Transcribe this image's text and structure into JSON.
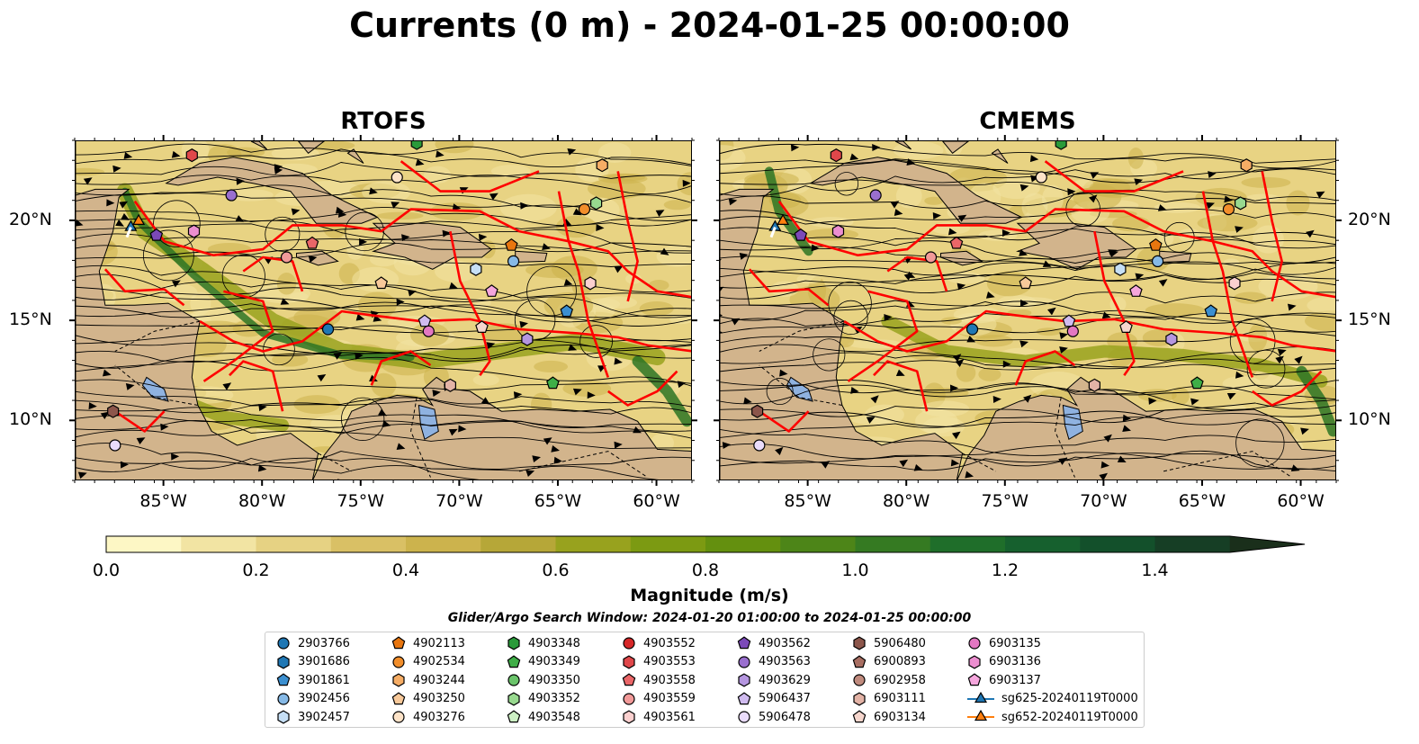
{
  "title": "Currents (0 m) - 2024-01-25 00:00:00",
  "panels": [
    {
      "title": "RTOFS"
    },
    {
      "title": "CMEMS"
    }
  ],
  "axes": {
    "lon_ticks": [
      "85°W",
      "80°W",
      "75°W",
      "70°W",
      "65°W",
      "60°W"
    ],
    "lat_ticks": [
      "20°N",
      "15°N",
      "10°N"
    ]
  },
  "colorbar": {
    "label": "Magnitude (m/s)",
    "ticks": [
      "0.0",
      "0.2",
      "0.4",
      "0.6",
      "0.8",
      "1.0",
      "1.2",
      "1.4"
    ],
    "range": [
      0,
      1.5
    ],
    "extend": "max",
    "colors": [
      "#fdf7c5",
      "#f2e4a3",
      "#e6d283",
      "#d9c065",
      "#ccb34d",
      "#b6a738",
      "#98a21e",
      "#7c9a12",
      "#64900f",
      "#4d8518",
      "#357a22",
      "#1f6e2a",
      "#16602e",
      "#13502b",
      "#163e25",
      "#1a2f1b"
    ]
  },
  "map_colors": {
    "land": "#d2b48c",
    "lake": "#8fb2e0",
    "ocean_low": "#e8d383",
    "ocean_mid": "#99a21e",
    "ocean_high": "#2d7424",
    "eez_lines": "#ff0000",
    "streamlines": "#000000"
  },
  "search_window": "Glider/Argo Search Window: 2024-01-20 01:00:00 to 2024-01-25 00:00:00",
  "legend": [
    {
      "label": "2903766",
      "marker": "circle",
      "color": "#1f77b4"
    },
    {
      "label": "3901686",
      "marker": "hexagon",
      "color": "#1f77b4"
    },
    {
      "label": "3901861",
      "marker": "pentagon",
      "color": "#3b8fd0"
    },
    {
      "label": "3902456",
      "marker": "circle",
      "color": "#86b9e6"
    },
    {
      "label": "3902457",
      "marker": "hexagon",
      "color": "#c6dff5"
    },
    {
      "label": "4902113",
      "marker": "pentagon",
      "color": "#e8760f"
    },
    {
      "label": "4902534",
      "marker": "circle",
      "color": "#f28e2b"
    },
    {
      "label": "4903244",
      "marker": "hexagon",
      "color": "#f6ad65"
    },
    {
      "label": "4903250",
      "marker": "pentagon",
      "color": "#f8c99a"
    },
    {
      "label": "4903276",
      "marker": "circle",
      "color": "#fde3c8"
    },
    {
      "label": "4903348",
      "marker": "hexagon",
      "color": "#2a9a3a"
    },
    {
      "label": "4903349",
      "marker": "pentagon",
      "color": "#3fae47"
    },
    {
      "label": "4903350",
      "marker": "circle",
      "color": "#6ac46a"
    },
    {
      "label": "4903352",
      "marker": "hexagon",
      "color": "#98d98f"
    },
    {
      "label": "4903548",
      "marker": "pentagon",
      "color": "#cdf0c4"
    },
    {
      "label": "4903552",
      "marker": "circle",
      "color": "#d62728"
    },
    {
      "label": "4903553",
      "marker": "hexagon",
      "color": "#e0474a"
    },
    {
      "label": "4903558",
      "marker": "pentagon",
      "color": "#ea6668"
    },
    {
      "label": "4903559",
      "marker": "circle",
      "color": "#f29a99"
    },
    {
      "label": "4903561",
      "marker": "hexagon",
      "color": "#fbd0cf"
    },
    {
      "label": "4903562",
      "marker": "pentagon",
      "color": "#7b49b8"
    },
    {
      "label": "4903563",
      "marker": "circle",
      "color": "#9a6fcf"
    },
    {
      "label": "4903629",
      "marker": "hexagon",
      "color": "#b596e0"
    },
    {
      "label": "5906437",
      "marker": "pentagon",
      "color": "#d0bbef"
    },
    {
      "label": "5906478",
      "marker": "circle",
      "color": "#eadcfb"
    },
    {
      "label": "5906480",
      "marker": "hexagon",
      "color": "#8c564b"
    },
    {
      "label": "6900893",
      "marker": "pentagon",
      "color": "#a86e62"
    },
    {
      "label": "6902958",
      "marker": "circle",
      "color": "#c08b7e"
    },
    {
      "label": "6903111",
      "marker": "hexagon",
      "color": "#e3b3a6"
    },
    {
      "label": "6903134",
      "marker": "pentagon",
      "color": "#f6d6cd"
    },
    {
      "label": "6903135",
      "marker": "circle",
      "color": "#e377c2"
    },
    {
      "label": "6903136",
      "marker": "hexagon",
      "color": "#ec8ed0"
    },
    {
      "label": "6903137",
      "marker": "pentagon",
      "color": "#f5a6dd"
    },
    {
      "label": "sg625-20240119T0000",
      "marker": "triangle-line",
      "color": "#1f77b4"
    },
    {
      "label": "sg652-20240119T0000",
      "marker": "triangle-line",
      "color": "#ff7f0e"
    }
  ],
  "observations": [
    {
      "id": "2903766",
      "lon": -76.7,
      "lat": 14.6
    },
    {
      "id": "3901861",
      "lon": -64.6,
      "lat": 15.5
    },
    {
      "id": "3902456",
      "lon": -67.3,
      "lat": 18.0
    },
    {
      "id": "3902457",
      "lon": -69.2,
      "lat": 17.6
    },
    {
      "id": "4902113",
      "lon": -67.4,
      "lat": 18.8
    },
    {
      "id": "4902534",
      "lon": -63.7,
      "lat": 20.6
    },
    {
      "id": "4903244",
      "lon": -62.8,
      "lat": 22.8
    },
    {
      "id": "4903250",
      "lon": -74.0,
      "lat": 16.9
    },
    {
      "id": "4903276",
      "lon": -73.2,
      "lat": 22.2
    },
    {
      "id": "4903348",
      "lon": -72.2,
      "lat": 23.9
    },
    {
      "id": "4903349",
      "lon": -65.3,
      "lat": 11.9
    },
    {
      "id": "4903352",
      "lon": -63.1,
      "lat": 20.9
    },
    {
      "id": "4903553",
      "lon": -83.6,
      "lat": 23.3
    },
    {
      "id": "4903558",
      "lon": -77.5,
      "lat": 18.9
    },
    {
      "id": "4903559",
      "lon": -78.8,
      "lat": 18.2
    },
    {
      "id": "4903561",
      "lon": -63.4,
      "lat": 16.9
    },
    {
      "id": "4903562",
      "lon": -85.4,
      "lat": 19.3
    },
    {
      "id": "4903563",
      "lon": -81.6,
      "lat": 21.3
    },
    {
      "id": "4903629",
      "lon": -66.6,
      "lat": 14.1
    },
    {
      "id": "5906437",
      "lon": -71.8,
      "lat": 15.0
    },
    {
      "id": "5906478",
      "lon": -87.5,
      "lat": 8.8
    },
    {
      "id": "5906480",
      "lon": -87.6,
      "lat": 10.5
    },
    {
      "id": "6903111",
      "lon": -70.5,
      "lat": 11.8
    },
    {
      "id": "6903134",
      "lon": -68.9,
      "lat": 14.7
    },
    {
      "id": "6903135",
      "lon": -71.6,
      "lat": 14.5
    },
    {
      "id": "6903136",
      "lon": -83.5,
      "lat": 19.5
    },
    {
      "id": "6903137",
      "lon": -68.4,
      "lat": 16.5
    },
    {
      "id": "sg625-20240119T0000",
      "lon": -86.7,
      "lat": 19.7
    },
    {
      "id": "sg652-20240119T0000",
      "lon": -86.3,
      "lat": 20.0
    }
  ]
}
